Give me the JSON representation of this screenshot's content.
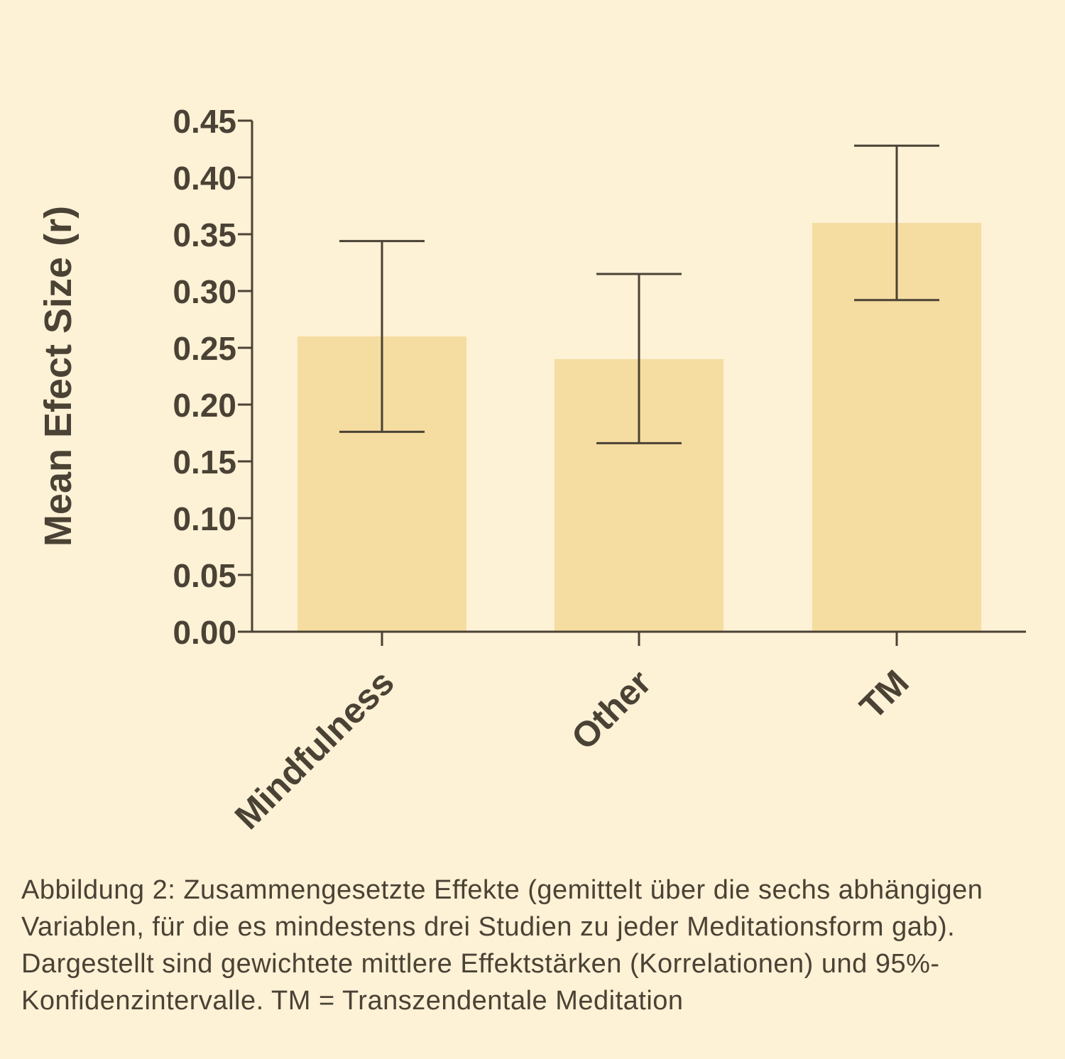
{
  "chart_data": {
    "type": "bar",
    "categories": [
      "Mindfulness",
      "Other",
      "TM"
    ],
    "values": [
      0.26,
      0.24,
      0.36
    ],
    "error_bars": {
      "lower": [
        0.176,
        0.166,
        0.292
      ],
      "upper": [
        0.344,
        0.315,
        0.428
      ]
    },
    "ylabel": "Mean  Efect  Size (r)",
    "xlabel": "",
    "ylim": [
      0,
      0.45
    ],
    "yticks": [
      "0.00",
      "0.05",
      "0.10",
      "0.15",
      "0.20",
      "0.25",
      "0.30",
      "0.35",
      "0.40",
      "0.45"
    ],
    "bar_color": "#f5dca0",
    "axis_color": "#4a4234",
    "grid": false
  },
  "caption": "Abbildung 2: Zusammengesetzte Effekte (gemittelt über die sechs abhängigen Variablen, für die es mindestens drei Studien zu jeder Meditationsform gab). Dargestellt sind gewichtete mittlere Effektstärken (Korrelationen) und 95%-Konfidenzintervalle. TM = Transzendentale Meditation"
}
